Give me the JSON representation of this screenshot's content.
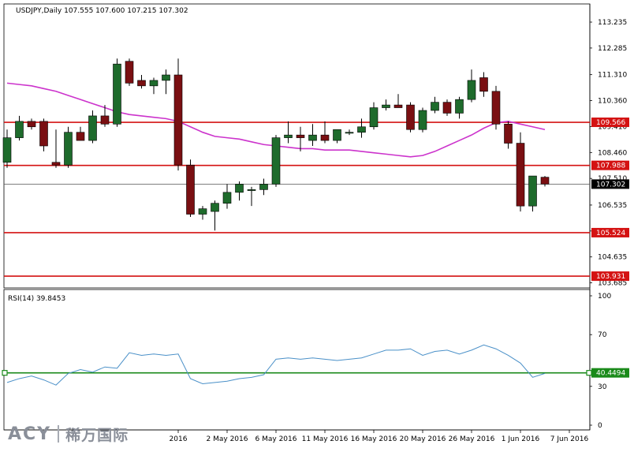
{
  "chart_data": [
    {
      "type": "candlestick",
      "title": "USDJPY,Daily  107.555 107.600 107.215 107.302",
      "yticks": [
        "113.235",
        "112.285",
        "111.310",
        "110.360",
        "109.410",
        "108.460",
        "107.510",
        "106.535",
        "105.585",
        "104.635",
        "103.685"
      ],
      "ylim": [
        103.5,
        113.9
      ],
      "xticks": [
        {
          "label": "2016",
          "index": 14
        },
        {
          "label": "2 May 2016",
          "index": 18
        },
        {
          "label": "6 May 2016",
          "index": 22
        },
        {
          "label": "11 May 2016",
          "index": 26
        },
        {
          "label": "16 May 2016",
          "index": 30
        },
        {
          "label": "20 May 2016",
          "index": 34
        },
        {
          "label": "26 May 2016",
          "index": 38
        },
        {
          "label": "1 Jun 2016",
          "index": 42
        },
        {
          "label": "7 Jun 2016",
          "index": 46
        }
      ],
      "candles": [
        {
          "o": 108.1,
          "h": 109.3,
          "l": 107.9,
          "c": 109.0
        },
        {
          "o": 109.0,
          "h": 109.8,
          "l": 108.9,
          "c": 109.6
        },
        {
          "o": 109.6,
          "h": 109.7,
          "l": 109.3,
          "c": 109.4
        },
        {
          "o": 109.6,
          "h": 109.7,
          "l": 108.5,
          "c": 108.7
        },
        {
          "o": 108.1,
          "h": 109.3,
          "l": 107.9,
          "c": 108.0
        },
        {
          "o": 108.0,
          "h": 109.4,
          "l": 107.9,
          "c": 109.2
        },
        {
          "o": 109.2,
          "h": 109.4,
          "l": 108.9,
          "c": 108.9
        },
        {
          "o": 108.9,
          "h": 110.0,
          "l": 108.8,
          "c": 109.8
        },
        {
          "o": 109.8,
          "h": 110.2,
          "l": 109.4,
          "c": 109.5
        },
        {
          "o": 109.5,
          "h": 111.9,
          "l": 109.4,
          "c": 111.7
        },
        {
          "o": 111.8,
          "h": 111.9,
          "l": 110.9,
          "c": 111.0
        },
        {
          "o": 111.1,
          "h": 111.3,
          "l": 110.8,
          "c": 110.9
        },
        {
          "o": 110.9,
          "h": 111.2,
          "l": 110.6,
          "c": 111.1
        },
        {
          "o": 111.1,
          "h": 111.5,
          "l": 110.6,
          "c": 111.3
        },
        {
          "o": 111.3,
          "h": 111.9,
          "l": 107.8,
          "c": 108.0
        },
        {
          "o": 108.0,
          "h": 108.2,
          "l": 106.1,
          "c": 106.2
        },
        {
          "o": 106.2,
          "h": 106.5,
          "l": 106.0,
          "c": 106.4
        },
        {
          "o": 106.3,
          "h": 106.7,
          "l": 105.6,
          "c": 106.6
        },
        {
          "o": 106.6,
          "h": 107.3,
          "l": 106.4,
          "c": 107.0
        },
        {
          "o": 107.0,
          "h": 107.4,
          "l": 106.7,
          "c": 107.3
        },
        {
          "o": 107.1,
          "h": 107.2,
          "l": 106.5,
          "c": 107.1
        },
        {
          "o": 107.1,
          "h": 107.5,
          "l": 106.9,
          "c": 107.3
        },
        {
          "o": 107.3,
          "h": 109.1,
          "l": 107.2,
          "c": 109.0
        },
        {
          "o": 109.0,
          "h": 109.6,
          "l": 108.8,
          "c": 109.1
        },
        {
          "o": 109.1,
          "h": 109.4,
          "l": 108.5,
          "c": 109.0
        },
        {
          "o": 108.9,
          "h": 109.5,
          "l": 108.7,
          "c": 109.1
        },
        {
          "o": 109.1,
          "h": 109.6,
          "l": 108.8,
          "c": 108.9
        },
        {
          "o": 108.9,
          "h": 109.3,
          "l": 108.8,
          "c": 109.3
        },
        {
          "o": 109.2,
          "h": 109.3,
          "l": 109.1,
          "c": 109.2
        },
        {
          "o": 109.2,
          "h": 109.7,
          "l": 109.0,
          "c": 109.4
        },
        {
          "o": 109.4,
          "h": 110.3,
          "l": 109.3,
          "c": 110.1
        },
        {
          "o": 110.1,
          "h": 110.4,
          "l": 110.0,
          "c": 110.2
        },
        {
          "o": 110.2,
          "h": 110.6,
          "l": 110.1,
          "c": 110.1
        },
        {
          "o": 110.2,
          "h": 110.3,
          "l": 109.2,
          "c": 109.3
        },
        {
          "o": 109.3,
          "h": 110.1,
          "l": 109.2,
          "c": 110.0
        },
        {
          "o": 110.0,
          "h": 110.5,
          "l": 109.9,
          "c": 110.3
        },
        {
          "o": 110.3,
          "h": 110.4,
          "l": 109.8,
          "c": 109.9
        },
        {
          "o": 109.9,
          "h": 110.5,
          "l": 109.7,
          "c": 110.4
        },
        {
          "o": 110.4,
          "h": 111.5,
          "l": 110.3,
          "c": 111.1
        },
        {
          "o": 111.2,
          "h": 111.4,
          "l": 110.5,
          "c": 110.7
        },
        {
          "o": 110.7,
          "h": 110.9,
          "l": 109.3,
          "c": 109.5
        },
        {
          "o": 109.5,
          "h": 109.6,
          "l": 108.6,
          "c": 108.8
        },
        {
          "o": 108.8,
          "h": 109.2,
          "l": 106.3,
          "c": 106.5
        },
        {
          "o": 106.5,
          "h": 107.6,
          "l": 106.3,
          "c": 107.6
        },
        {
          "o": 107.555,
          "h": 107.6,
          "l": 107.215,
          "c": 107.302
        }
      ],
      "moving_average": [
        111.0,
        110.95,
        110.9,
        110.8,
        110.7,
        110.55,
        110.4,
        110.25,
        110.1,
        109.95,
        109.85,
        109.8,
        109.75,
        109.7,
        109.6,
        109.4,
        109.2,
        109.05,
        109.0,
        108.95,
        108.85,
        108.75,
        108.7,
        108.65,
        108.6,
        108.6,
        108.55,
        108.55,
        108.55,
        108.5,
        108.45,
        108.4,
        108.35,
        108.3,
        108.35,
        108.5,
        108.7,
        108.9,
        109.1,
        109.35,
        109.55,
        109.6,
        109.5,
        109.4,
        109.3
      ],
      "horizontal_levels": [
        {
          "value": 109.566,
          "label": "109.566"
        },
        {
          "value": 107.988,
          "label": "107.988"
        },
        {
          "value": 105.524,
          "label": "105.524"
        },
        {
          "value": 103.931,
          "label": "103.931"
        }
      ],
      "current_price": {
        "value": 107.302,
        "label": "107.302"
      },
      "colors": {
        "bull": "#1e6b2c",
        "bear": "#7a0f12",
        "ma": "#cc33cc",
        "level": "#d41212",
        "current": "#000000"
      }
    },
    {
      "type": "line",
      "title": "RSI(14) 39.8453",
      "yticks": [
        "100",
        "70",
        "30",
        "0"
      ],
      "ylim": [
        0,
        100
      ],
      "values": [
        33,
        36,
        38,
        35,
        31,
        40,
        43,
        41,
        45,
        44,
        56,
        54,
        55,
        54,
        55,
        36,
        32,
        33,
        34,
        36,
        37,
        39,
        51,
        52,
        51,
        52,
        51,
        50,
        51,
        52,
        55,
        58,
        58,
        59,
        54,
        57,
        58,
        55,
        58,
        62,
        59,
        54,
        48,
        37,
        40
      ],
      "level": {
        "value": 40.4494,
        "label": "40.4494"
      },
      "colors": {
        "line": "#4a90c8",
        "level": "#1a8a1a"
      }
    }
  ],
  "logo": {
    "brand": "ACY",
    "chinese": "稀万国际"
  }
}
